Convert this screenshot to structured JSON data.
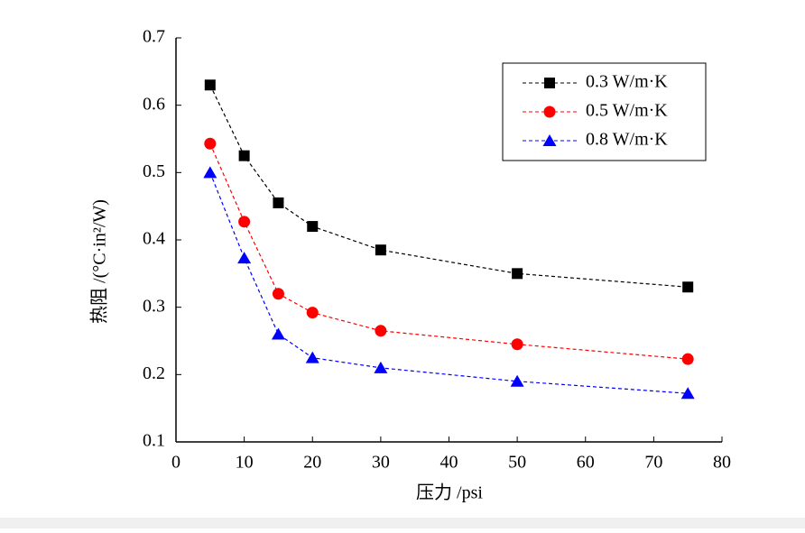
{
  "chart_data": {
    "type": "line",
    "xlabel": "压力 /psi",
    "ylabel": "热阻 /(°C·in²/W)",
    "x": [
      5,
      10,
      15,
      20,
      30,
      50,
      75
    ],
    "series": [
      {
        "name": "0.3 W/m·K",
        "color": "#000000",
        "marker": "square",
        "values": [
          0.63,
          0.525,
          0.455,
          0.42,
          0.385,
          0.35,
          0.33
        ]
      },
      {
        "name": "0.5 W/m·K",
        "color": "#ff0000",
        "marker": "circle",
        "values": [
          0.543,
          0.427,
          0.32,
          0.292,
          0.265,
          0.245,
          0.223
        ]
      },
      {
        "name": "0.8 W/m·K",
        "color": "#0000ff",
        "marker": "triangle",
        "values": [
          0.5,
          0.373,
          0.26,
          0.225,
          0.21,
          0.19,
          0.172
        ]
      }
    ],
    "xlim": [
      0,
      80
    ],
    "xticks": [
      0,
      10,
      20,
      30,
      40,
      50,
      60,
      70,
      80
    ],
    "ylim": [
      0.1,
      0.7
    ],
    "yticks": [
      0.1,
      0.2,
      0.3,
      0.4,
      0.5,
      0.6,
      0.7
    ],
    "grid": false,
    "legend": "upper right"
  }
}
